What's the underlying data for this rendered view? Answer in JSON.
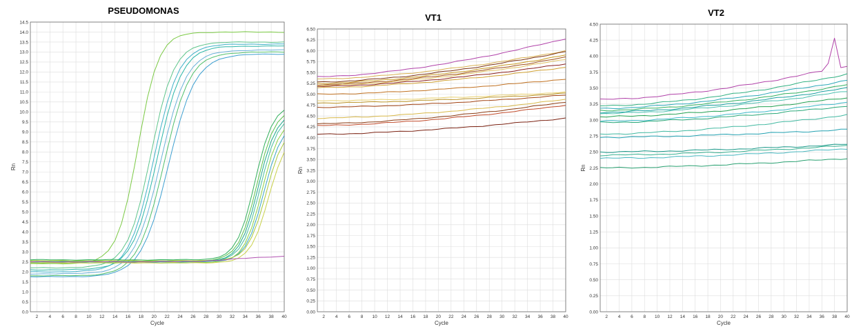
{
  "chart_data": [
    {
      "type": "line",
      "title": "PSEUDOMONAS",
      "xlabel": "Cycle",
      "ylabel": "Rn",
      "xlim": [
        1,
        40
      ],
      "ylim": [
        0,
        14.5
      ],
      "yticks": [
        0.0,
        0.5,
        1.0,
        1.5,
        2.0,
        2.5,
        3.0,
        3.5,
        4.0,
        4.5,
        5.0,
        5.5,
        6.0,
        6.5,
        7.0,
        7.5,
        8.0,
        8.5,
        9.0,
        9.5,
        10.0,
        10.5,
        11.0,
        11.5,
        12.0,
        12.5,
        13.0,
        13.5,
        14.0,
        14.5
      ],
      "ytick_decimals": 1,
      "xticks": [
        2,
        4,
        6,
        8,
        10,
        12,
        14,
        16,
        18,
        20,
        22,
        24,
        26,
        28,
        30,
        32,
        34,
        36,
        38,
        40
      ],
      "grid": true,
      "curve_model": "sigmoid",
      "series": [
        {
          "base": 2.4,
          "top": 14.0,
          "mid": 17.5,
          "slope": 1.6,
          "color": "#7ac943"
        },
        {
          "base": 2.2,
          "top": 13.5,
          "mid": 19.5,
          "slope": 1.8,
          "color": "#5cc48a"
        },
        {
          "base": 2.0,
          "top": 13.4,
          "mid": 20.0,
          "slope": 1.9,
          "color": "#3fb0c8"
        },
        {
          "base": 2.1,
          "top": 13.3,
          "mid": 20.5,
          "slope": 1.9,
          "color": "#2bb6a8"
        },
        {
          "base": 1.9,
          "top": 13.1,
          "mid": 21.0,
          "slope": 2.0,
          "color": "#6ab0d8"
        },
        {
          "base": 1.8,
          "top": 13.0,
          "mid": 21.5,
          "slope": 2.0,
          "color": "#4fbf6a"
        },
        {
          "base": 1.75,
          "top": 12.9,
          "mid": 22.2,
          "slope": 2.1,
          "color": "#3d9fd0"
        },
        {
          "base": 2.6,
          "top": 10.4,
          "mid": 35.5,
          "slope": 1.4,
          "color": "#2fae5a"
        },
        {
          "base": 2.55,
          "top": 10.2,
          "mid": 35.8,
          "slope": 1.4,
          "color": "#59c24b"
        },
        {
          "base": 2.5,
          "top": 10.0,
          "mid": 36.0,
          "slope": 1.4,
          "color": "#1ea88c"
        },
        {
          "base": 2.5,
          "top": 9.9,
          "mid": 36.3,
          "slope": 1.4,
          "color": "#45bfa0"
        },
        {
          "base": 2.45,
          "top": 9.7,
          "mid": 36.6,
          "slope": 1.4,
          "color": "#8ad040"
        },
        {
          "base": 2.5,
          "top": 9.5,
          "mid": 36.9,
          "slope": 1.4,
          "color": "#3aa6c8"
        },
        {
          "base": 2.55,
          "top": 9.3,
          "mid": 37.2,
          "slope": 1.4,
          "color": "#a8c83a"
        },
        {
          "base": 2.45,
          "top": 9.0,
          "mid": 37.6,
          "slope": 1.4,
          "color": "#c8d048"
        },
        {
          "base": 2.5,
          "top": 2.8,
          "mid": 33.0,
          "slope": 3.0,
          "color": "#b050b0"
        }
      ]
    },
    {
      "type": "line",
      "title": "VT1",
      "xlabel": "Cycle",
      "ylabel": "Rn",
      "xlim": [
        1,
        40
      ],
      "ylim": [
        0,
        6.5
      ],
      "yticks": [
        0.0,
        0.25,
        0.5,
        0.75,
        1.0,
        1.25,
        1.5,
        1.75,
        2.0,
        2.25,
        2.5,
        2.75,
        3.0,
        3.25,
        3.5,
        3.75,
        4.0,
        4.25,
        4.5,
        4.75,
        5.0,
        5.25,
        5.5,
        5.75,
        6.0,
        6.25,
        6.5
      ],
      "ytick_decimals": 2,
      "xticks": [
        2,
        4,
        6,
        8,
        10,
        12,
        14,
        16,
        18,
        20,
        22,
        24,
        26,
        28,
        30,
        32,
        34,
        36,
        38,
        40
      ],
      "grid": true,
      "curve_model": "linear",
      "series": [
        {
          "start": 5.4,
          "end": 6.28,
          "color": "#b040a8"
        },
        {
          "start": 5.35,
          "end": 6.0,
          "color": "#d8b050"
        },
        {
          "start": 5.28,
          "end": 5.98,
          "color": "#7a3010"
        },
        {
          "start": 5.25,
          "end": 5.9,
          "color": "#c89a20"
        },
        {
          "start": 5.22,
          "end": 5.85,
          "color": "#a0501a"
        },
        {
          "start": 5.2,
          "end": 5.8,
          "color": "#e0c060"
        },
        {
          "start": 5.18,
          "end": 5.7,
          "color": "#8a2020"
        },
        {
          "start": 5.15,
          "end": 5.62,
          "color": "#d0a030"
        },
        {
          "start": 5.0,
          "end": 5.35,
          "color": "#c07020"
        },
        {
          "start": 4.85,
          "end": 5.05,
          "color": "#e8d070"
        },
        {
          "start": 4.8,
          "end": 5.02,
          "color": "#b89020"
        },
        {
          "start": 4.7,
          "end": 4.98,
          "color": "#a04010"
        },
        {
          "start": 4.45,
          "end": 4.88,
          "color": "#d8b848"
        },
        {
          "start": 4.32,
          "end": 4.82,
          "color": "#8a3a10"
        },
        {
          "start": 4.28,
          "end": 4.75,
          "color": "#c04828"
        },
        {
          "start": 4.08,
          "end": 4.45,
          "color": "#7a2010"
        }
      ]
    },
    {
      "type": "line",
      "title": "VT2",
      "xlabel": "Cycle",
      "ylabel": "Rn",
      "xlim": [
        1,
        40
      ],
      "ylim": [
        0,
        4.5
      ],
      "yticks": [
        0.0,
        0.25,
        0.5,
        0.75,
        1.0,
        1.25,
        1.5,
        1.75,
        2.0,
        2.25,
        2.5,
        2.75,
        3.0,
        3.25,
        3.5,
        3.75,
        4.0,
        4.25,
        4.5
      ],
      "ytick_decimals": 2,
      "xticks": [
        2,
        4,
        6,
        8,
        10,
        12,
        14,
        16,
        18,
        20,
        22,
        24,
        26,
        28,
        30,
        32,
        34,
        36,
        38,
        40
      ],
      "grid": true,
      "curve_model": "linear",
      "series": [
        {
          "start": 3.32,
          "end": 3.85,
          "color": "#b040a8",
          "spike": {
            "x": 38,
            "y": 4.28
          }
        },
        {
          "start": 3.22,
          "end": 3.72,
          "color": "#2fb080"
        },
        {
          "start": 3.18,
          "end": 3.62,
          "color": "#2aa8b8"
        },
        {
          "start": 3.15,
          "end": 3.55,
          "color": "#30b060"
        },
        {
          "start": 3.12,
          "end": 3.5,
          "color": "#1aa0a0"
        },
        {
          "start": 3.1,
          "end": 3.45,
          "color": "#4cc0b0"
        },
        {
          "start": 3.05,
          "end": 3.35,
          "color": "#20a050"
        },
        {
          "start": 2.98,
          "end": 3.28,
          "color": "#3cb8c8"
        },
        {
          "start": 2.96,
          "end": 3.22,
          "color": "#28a878"
        },
        {
          "start": 2.78,
          "end": 3.08,
          "color": "#40b8a0"
        },
        {
          "start": 2.73,
          "end": 2.85,
          "color": "#20a0b0"
        },
        {
          "start": 2.5,
          "end": 2.62,
          "color": "#189888"
        },
        {
          "start": 2.45,
          "end": 2.6,
          "color": "#36b090"
        },
        {
          "start": 2.4,
          "end": 2.55,
          "color": "#48b8c0"
        },
        {
          "start": 2.25,
          "end": 2.4,
          "color": "#28a070"
        }
      ]
    }
  ]
}
